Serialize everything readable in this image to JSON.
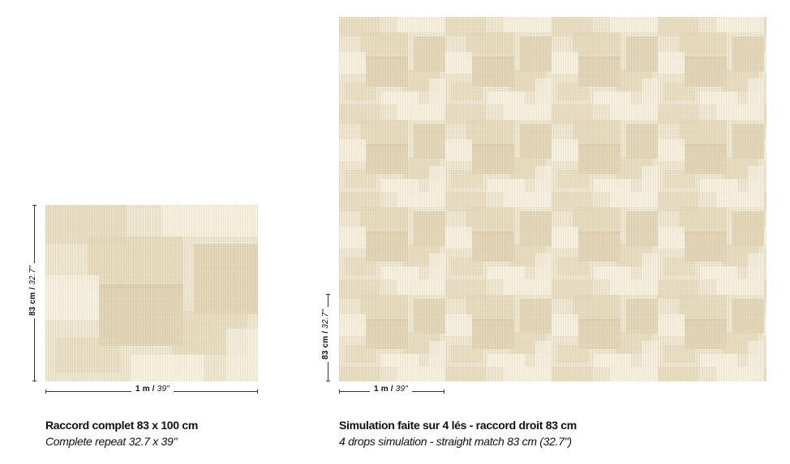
{
  "left_panel": {
    "height_label": "83 cm / ",
    "height_label_italic": "32.7\"",
    "width_label": "1 m / ",
    "width_label_italic": "39\"",
    "caption_title": "Raccord complet 83 x 100 cm",
    "caption_subtitle": "Complete repeat 32.7 x 39\""
  },
  "right_panel": {
    "height_label": "83 cm / ",
    "height_label_italic": "32.7\"",
    "width_label": "1 m / ",
    "width_label_italic": "39\"",
    "caption_title": "Simulation faite sur 4 lés - raccord droit 83 cm",
    "caption_subtitle": "4 drops simulation - straight match 83 cm (32.7\")"
  },
  "colors": {
    "pattern_base": "#efe6cf",
    "pattern_light": "#f7f1e1",
    "pattern_mid": "#e3d6b6",
    "pattern_dark": "#d6c59f"
  }
}
